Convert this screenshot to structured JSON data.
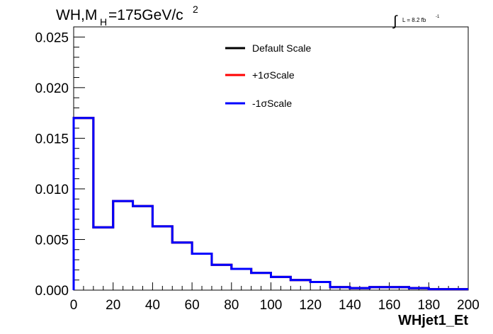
{
  "chart_data": {
    "type": "line",
    "title": {
      "main": "WH,M",
      "sub": "H",
      "rest": "=175GeV/c",
      "sup": "2"
    },
    "luminosity": {
      "integral_symbol": "∫",
      "text": "L = 8.2 fb",
      "sup": "-1"
    },
    "xlabel": "WHjet1_Et",
    "ylabel": "",
    "xlim": [
      0,
      200
    ],
    "ylim": [
      0,
      0.026
    ],
    "x_ticks": [
      "0",
      "20",
      "40",
      "60",
      "80",
      "100",
      "120",
      "140",
      "160",
      "180",
      "200"
    ],
    "y_ticks": [
      "0.000",
      "0.005",
      "0.010",
      "0.015",
      "0.020",
      "0.025"
    ],
    "bin_edges": [
      0,
      10,
      20,
      30,
      40,
      50,
      60,
      70,
      80,
      90,
      100,
      110,
      120,
      130,
      140,
      150,
      160,
      170,
      180,
      190,
      200
    ],
    "series": [
      {
        "name": "Default Scale",
        "color": "#000000",
        "values": [
          0.017,
          0.0062,
          0.0088,
          0.0083,
          0.0063,
          0.0047,
          0.0036,
          0.0025,
          0.0021,
          0.0017,
          0.0013,
          0.001,
          0.0008,
          0.0003,
          0.0002,
          0.0003,
          0.0003,
          0.0002,
          0.0001,
          0.0001
        ]
      },
      {
        "name": "+1σScale",
        "color": "#ff0000",
        "values": [
          0.017,
          0.0062,
          0.0088,
          0.0083,
          0.0063,
          0.0047,
          0.0036,
          0.0025,
          0.0021,
          0.0017,
          0.0013,
          0.001,
          0.0008,
          0.0003,
          0.0002,
          0.0003,
          0.0003,
          0.0002,
          0.0001,
          0.0001
        ]
      },
      {
        "name": "-1σScale",
        "color": "#0000ff",
        "values": [
          0.017,
          0.0062,
          0.0088,
          0.0083,
          0.0063,
          0.0047,
          0.0036,
          0.0025,
          0.0021,
          0.0017,
          0.0013,
          0.001,
          0.0008,
          0.0003,
          0.0002,
          0.0003,
          0.0003,
          0.0002,
          0.0001,
          0.0001
        ]
      }
    ],
    "legend_position": "top-center"
  }
}
